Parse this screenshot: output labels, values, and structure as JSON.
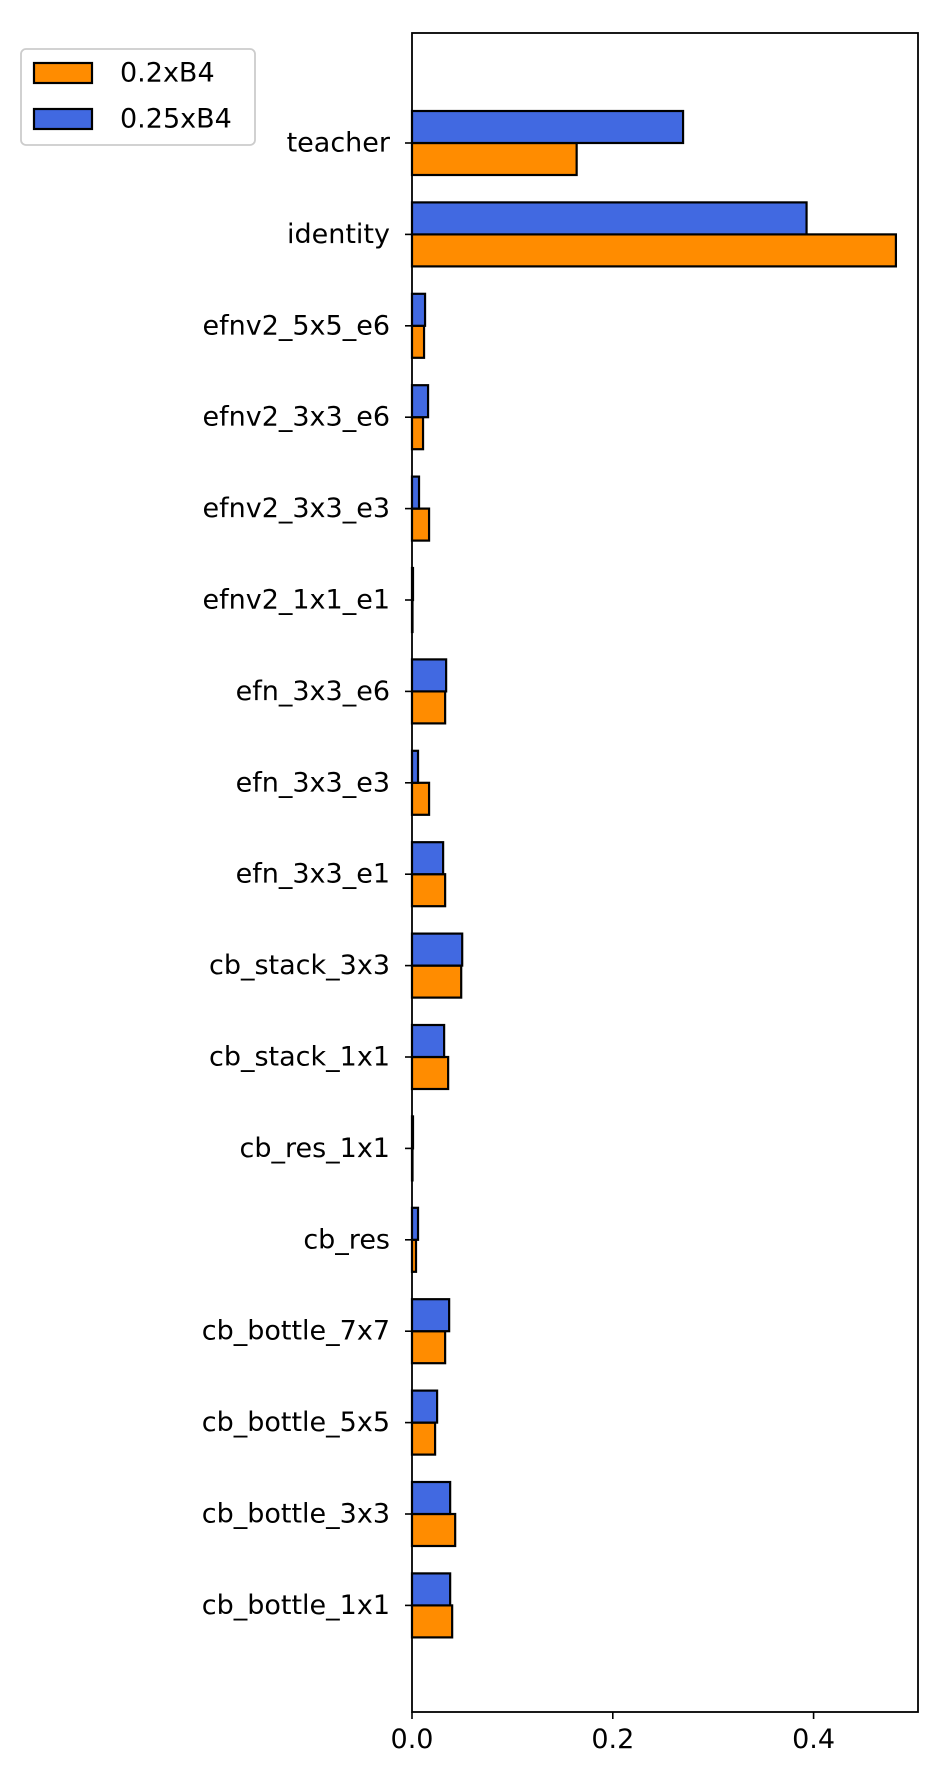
{
  "chart_data": {
    "type": "bar",
    "orientation": "horizontal",
    "title": "",
    "xlabel": "",
    "ylabel": "",
    "xlim": [
      0,
      0.504
    ],
    "x_ticks": [
      0.0,
      0.2,
      0.4
    ],
    "x_tick_labels": [
      "0.0",
      "0.2",
      "0.4"
    ],
    "grid": false,
    "legend_position": "upper-left outside plot",
    "categories": [
      "teacher",
      "identity",
      "efnv2_5x5_e6",
      "efnv2_3x3_e6",
      "efnv2_3x3_e3",
      "efnv2_1x1_e1",
      "efn_3x3_e6",
      "efn_3x3_e3",
      "efn_3x3_e1",
      "cb_stack_3x3",
      "cb_stack_1x1",
      "cb_res_1x1",
      "cb_res",
      "cb_bottle_7x7",
      "cb_bottle_5x5",
      "cb_bottle_3x3",
      "cb_bottle_1x1"
    ],
    "series": [
      {
        "name": "0.2xB4",
        "color": "#ff8c00",
        "values": [
          0.164,
          0.482,
          0.012,
          0.011,
          0.017,
          0.0005,
          0.033,
          0.017,
          0.033,
          0.049,
          0.036,
          0.0005,
          0.004,
          0.033,
          0.023,
          0.043,
          0.04
        ]
      },
      {
        "name": "0.25xB4",
        "color": "#4169e1",
        "values": [
          0.27,
          0.393,
          0.013,
          0.016,
          0.007,
          0.001,
          0.034,
          0.006,
          0.031,
          0.05,
          0.032,
          0.001,
          0.006,
          0.037,
          0.025,
          0.038,
          0.038
        ]
      }
    ]
  }
}
